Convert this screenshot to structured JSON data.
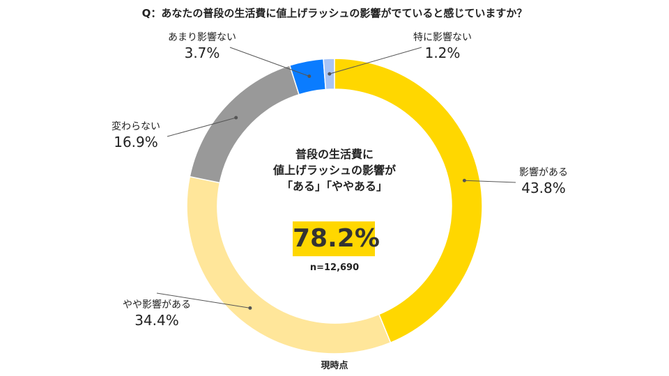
{
  "question": "Q：あなたの普段の生活費に値上げラッシュの影響がでていると感じていますか？",
  "center": {
    "headline_lines": [
      "普段の生活費に",
      "値上げラッシュの影響が",
      "「ある」「ややある」"
    ],
    "total_pct": "78.2%",
    "n": "n=12,690"
  },
  "footer": "現時点",
  "colors": {
    "eikyou_ga_aru": "#FFD700",
    "yaya_eikyou_ga_aru": "#FFE69A",
    "kawaranai": "#999999",
    "amari_eikyou_nai": "#0A7CFF",
    "toku_ni_eikyou_nai": "#A9C4F5",
    "highlight": "#FFD700"
  },
  "chart_data": {
    "type": "pie",
    "variant": "donut",
    "title": "",
    "series": [
      {
        "values": [
          43.8,
          34.4,
          16.9,
          3.7,
          1.2
        ],
        "categories": [
          "影響がある",
          "やや影響がある",
          "変わらない",
          "あまり影響ない",
          "特に影響ない"
        ],
        "value_labels": [
          "43.8%",
          "34.4%",
          "16.9%",
          "3.7%",
          "1.2%"
        ]
      }
    ]
  },
  "labels": [
    {
      "name": "影響がある",
      "pct": "43.8%"
    },
    {
      "name": "やや影響がある",
      "pct": "34.4%"
    },
    {
      "name": "変わらない",
      "pct": "16.9%"
    },
    {
      "name": "あまり影響ない",
      "pct": "3.7%"
    },
    {
      "name": "特に影響ない",
      "pct": "1.2%"
    }
  ]
}
